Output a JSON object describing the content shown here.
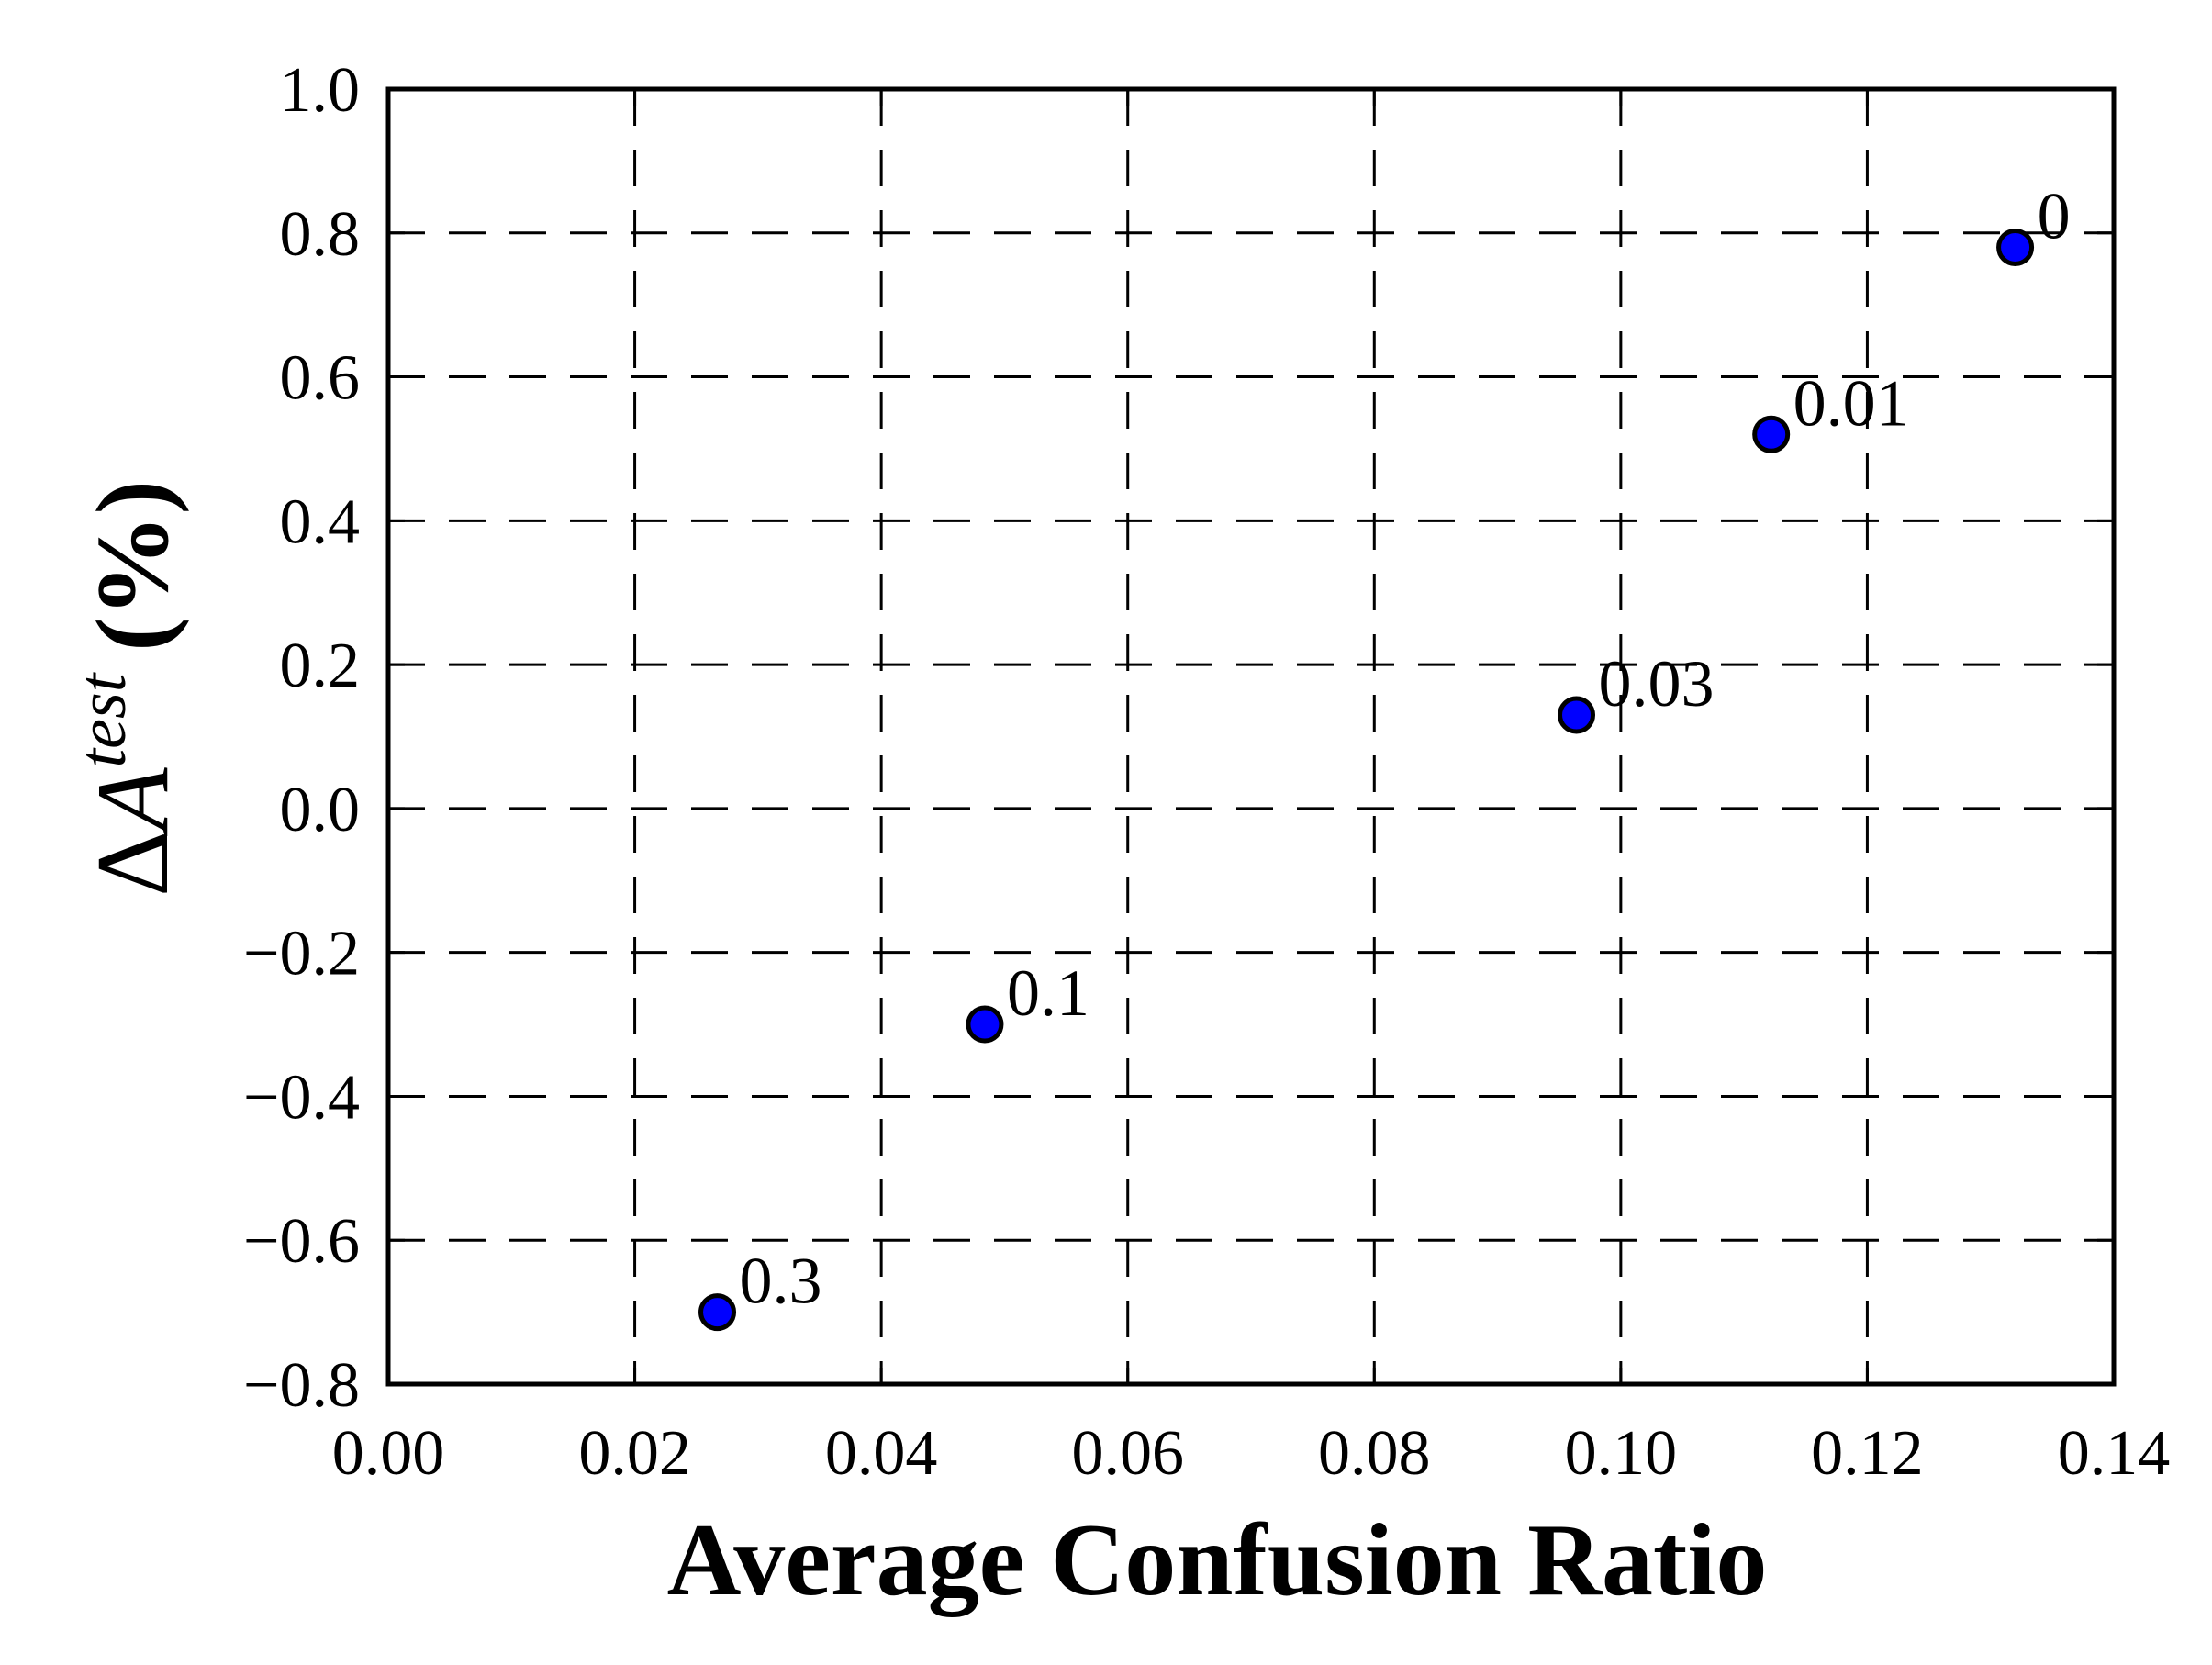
{
  "chart_data": {
    "type": "scatter",
    "xlabel": "Average Confusion Ratio",
    "ylabel_delta": "Δ",
    "ylabel_var": "A",
    "ylabel_sup": "test",
    "ylabel_unit": "(%)",
    "xlim": [
      0.0,
      0.14
    ],
    "ylim": [
      -0.8,
      1.0
    ],
    "xticks": [
      "0.00",
      "0.02",
      "0.04",
      "0.06",
      "0.08",
      "0.10",
      "0.12",
      "0.14"
    ],
    "yticks": [
      "−0.8",
      "−0.6",
      "−0.4",
      "−0.2",
      "0.0",
      "0.2",
      "0.4",
      "0.6",
      "0.8",
      "1.0"
    ],
    "grid": true,
    "marker_color": "#0000ff",
    "points": [
      {
        "x": 0.0267,
        "y": -0.7,
        "label": "0.3"
      },
      {
        "x": 0.0484,
        "y": -0.3,
        "label": "0.1"
      },
      {
        "x": 0.0964,
        "y": 0.13,
        "label": "0.03"
      },
      {
        "x": 0.1122,
        "y": 0.52,
        "label": "0.01"
      },
      {
        "x": 0.132,
        "y": 0.78,
        "label": "0"
      }
    ]
  }
}
